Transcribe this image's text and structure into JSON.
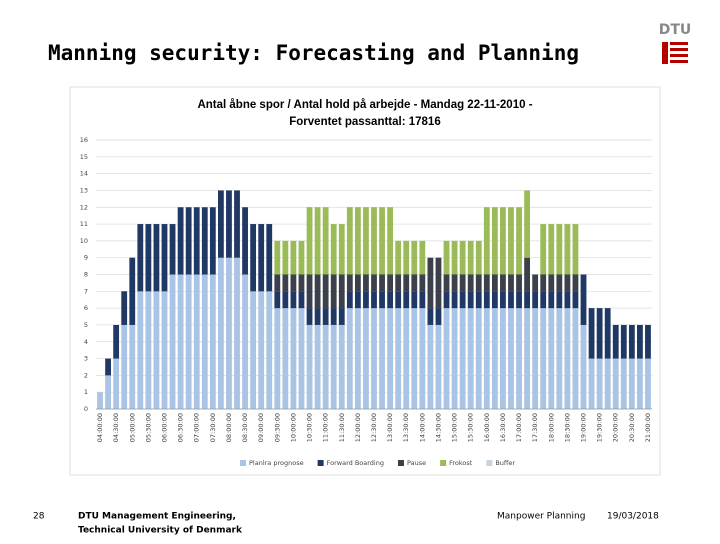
{
  "slide": {
    "title": "Manning security: Forecasting and Planning",
    "logo": "DTU",
    "page_number": "28",
    "footer_org_1": "DTU Management Engineering,",
    "footer_org_2": "Technical University of Denmark",
    "footer_topic": "Manpower Planning",
    "footer_date": "19/03/2018"
  },
  "chart_data": {
    "type": "stacked-bar",
    "title": "Antal åbne spor / Antal hold på arbejde - Mandag 22-11-2010 -",
    "subtitle": "Forventet passanttal: 17816",
    "categories": [
      "04:00:00",
      null,
      "04:30:00",
      null,
      "05:00:00",
      null,
      "05:30:00",
      null,
      "06:00:00",
      null,
      "06:30:00",
      null,
      "07:00:00",
      null,
      "07:30:00",
      null,
      "08:00:00",
      null,
      "08:30:00",
      null,
      "09:00:00",
      null,
      "09:30:00",
      null,
      "10:00:00",
      null,
      "10:30:00",
      null,
      "11:00:00",
      null,
      "11:30:00",
      null,
      "12:00:00",
      null,
      "12:30:00",
      null,
      "13:00:00",
      null,
      "13:30:00",
      null,
      "14:00:00",
      null,
      "14:30:00",
      null,
      "15:00:00",
      null,
      "15:30:00",
      null,
      "16:00:00",
      null,
      "16:30:00",
      null,
      "17:00:00",
      null,
      "17:30:00",
      null,
      "18:00:00",
      null,
      "18:30:00",
      null,
      "19:00:00",
      null,
      "19:30:00",
      null,
      "20:00:00",
      null,
      "20:30:00",
      null,
      "21:00:00"
    ],
    "series": [
      {
        "name": "Planlra prognose",
        "color": "#a9c4e4",
        "values": [
          1,
          2,
          3,
          5,
          5,
          7,
          7,
          7,
          7,
          8,
          8,
          8,
          8,
          8,
          8,
          9,
          9,
          9,
          8,
          7,
          7,
          7,
          6,
          6,
          6,
          6,
          5,
          5,
          5,
          5,
          5,
          6,
          6,
          6,
          6,
          6,
          6,
          6,
          6,
          6,
          6,
          5,
          5,
          6,
          6,
          6,
          6,
          6,
          6,
          6,
          6,
          6,
          6,
          6,
          6,
          6,
          6,
          6,
          6,
          6,
          5,
          3,
          3,
          3,
          3,
          3,
          3,
          3,
          3
        ]
      },
      {
        "name": "Forward Boarding",
        "color": "#1f3864",
        "values": [
          0,
          1,
          2,
          2,
          4,
          4,
          4,
          4,
          4,
          3,
          4,
          4,
          4,
          4,
          4,
          4,
          4,
          4,
          4,
          4,
          4,
          4,
          1,
          1,
          1,
          1,
          1,
          1,
          1,
          1,
          1,
          1,
          1,
          1,
          1,
          1,
          1,
          1,
          1,
          1,
          1,
          1,
          1,
          1,
          1,
          1,
          1,
          1,
          1,
          1,
          1,
          1,
          1,
          1,
          1,
          1,
          1,
          1,
          1,
          1,
          3,
          3,
          3,
          3,
          2,
          2,
          2,
          2,
          2
        ]
      },
      {
        "name": "Pause",
        "color": "#3b404b",
        "values": [
          0,
          0,
          0,
          0,
          0,
          0,
          0,
          0,
          0,
          0,
          0,
          0,
          0,
          0,
          0,
          0,
          0,
          0,
          0,
          0,
          0,
          0,
          1,
          1,
          1,
          1,
          2,
          2,
          2,
          2,
          2,
          1,
          1,
          1,
          1,
          1,
          1,
          1,
          1,
          1,
          1,
          3,
          3,
          1,
          1,
          1,
          1,
          1,
          1,
          1,
          1,
          1,
          1,
          2,
          1,
          1,
          1,
          1,
          1,
          1,
          0,
          0,
          0,
          0,
          0,
          0,
          0,
          0,
          0
        ]
      },
      {
        "name": "Frokost",
        "color": "#9bbb59",
        "values": [
          0,
          0,
          0,
          0,
          0,
          0,
          0,
          0,
          0,
          0,
          0,
          0,
          0,
          0,
          0,
          0,
          0,
          0,
          0,
          0,
          0,
          0,
          2,
          2,
          2,
          2,
          4,
          4,
          4,
          3,
          3,
          4,
          4,
          4,
          4,
          4,
          4,
          2,
          2,
          2,
          2,
          0,
          0,
          2,
          2,
          2,
          2,
          2,
          4,
          4,
          4,
          4,
          4,
          4,
          0,
          3,
          3,
          3,
          3,
          3,
          0,
          0,
          0,
          0,
          0,
          0,
          0,
          0,
          0
        ]
      },
      {
        "name": "Buffer",
        "color": "#c9d3e0",
        "values": [
          0,
          0,
          0,
          0,
          0,
          0,
          0,
          0,
          0,
          0,
          0,
          0,
          0,
          0,
          0,
          0,
          0,
          0,
          0,
          0,
          0,
          0,
          0,
          0,
          0,
          0,
          0,
          0,
          0,
          0,
          0,
          0,
          0,
          0,
          0,
          0,
          0,
          0,
          0,
          0,
          0,
          0,
          0,
          0,
          0,
          0,
          0,
          0,
          0,
          0,
          0,
          0,
          0,
          0,
          0,
          0,
          0,
          0,
          0,
          0,
          0,
          0,
          0,
          0,
          0,
          0,
          0,
          0,
          0
        ]
      }
    ],
    "ylim": [
      0,
      16
    ],
    "yticks": [
      0,
      1,
      2,
      3,
      4,
      5,
      6,
      7,
      8,
      9,
      10,
      11,
      12,
      13,
      14,
      15,
      16
    ],
    "grid": true,
    "legend": "bottom"
  }
}
